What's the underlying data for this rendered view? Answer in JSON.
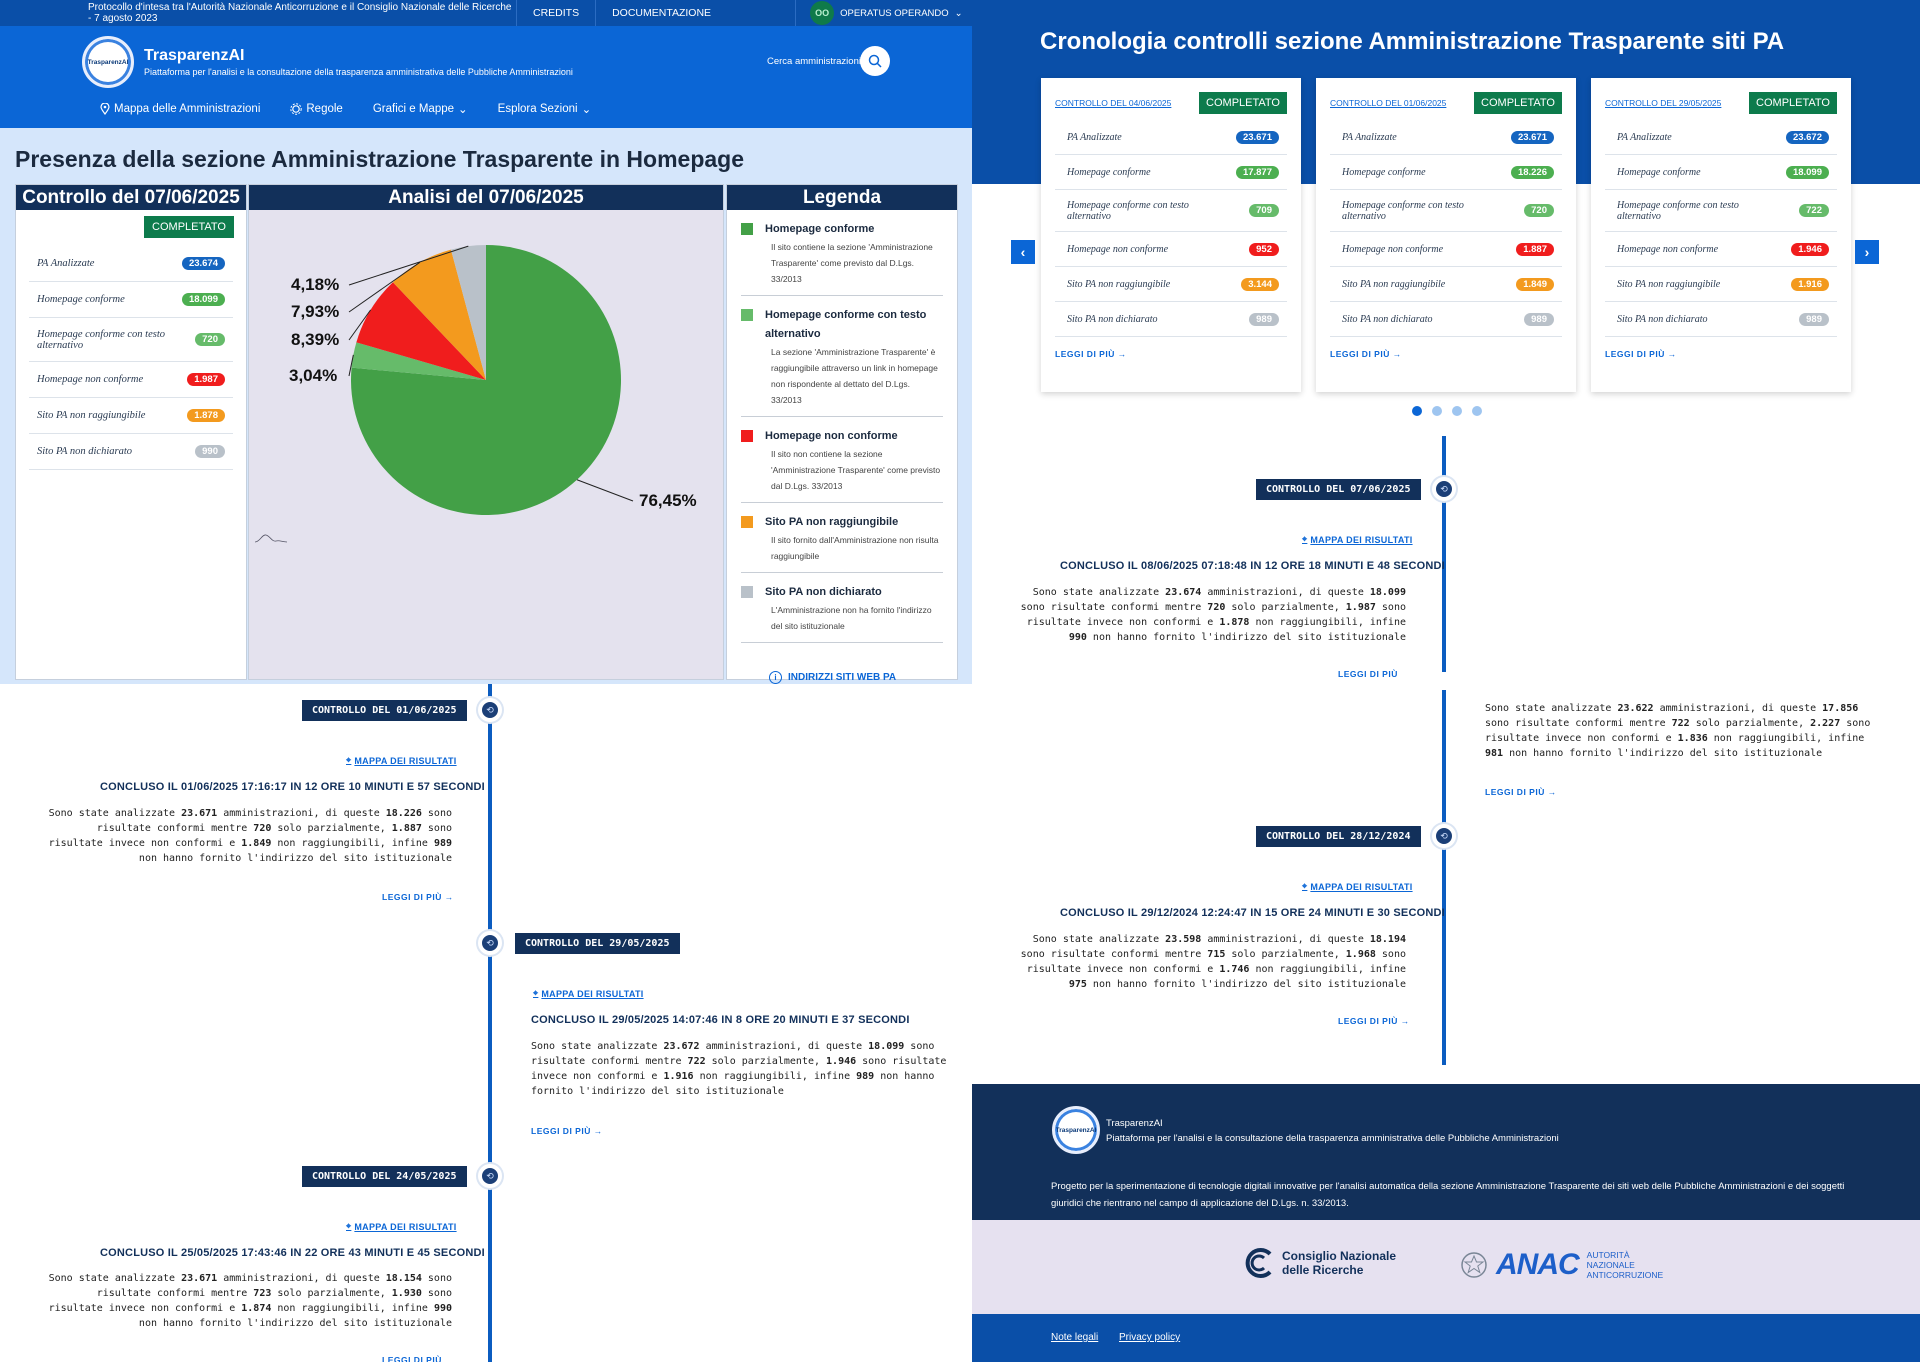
{
  "topbar": {
    "protocol": "Protocollo d'intesa tra l'Autorità Nazionale Anticorruzione e il Consiglio Nazionale delle Ricerche - 7 agosto 2023",
    "credits": "CREDITS",
    "docs": "DOCUMENTAZIONE",
    "status_code": "OO",
    "status_label": "OPERATUS OPERANDO"
  },
  "brand": {
    "logo_text": "TrasparenzAI",
    "name": "TrasparenzAI",
    "tagline": "Piattaforma per l'analisi e la consultazione della trasparenza amministrativa delle Pubbliche Amministrazioni"
  },
  "search": {
    "label": "Cerca amministrazioni"
  },
  "nav": {
    "map": "Mappa delle Amministrazioni",
    "rules": "Regole",
    "charts": "Grafici e Mappe",
    "explore": "Esplora Sezioni"
  },
  "homepage": {
    "title": "Presenza della sezione Amministrazione Trasparente in Homepage",
    "control_head": "Controllo del 07/06/2025",
    "analysis_head": "Analisi del 07/06/2025",
    "legend_head": "Legenda",
    "status": "COMPLETATO",
    "stats": [
      {
        "label": "PA Analizzate",
        "value": "23.674"
      },
      {
        "label": "Homepage conforme",
        "value": "18.099"
      },
      {
        "label": "Homepage conforme con testo alternativo",
        "value": "720"
      },
      {
        "label": "Homepage non conforme",
        "value": "1.987"
      },
      {
        "label": "Sito PA non raggiungibile",
        "value": "1.878"
      },
      {
        "label": "Sito PA non dichiarato",
        "value": "990"
      }
    ],
    "legend": [
      {
        "title": "Homepage conforme",
        "desc": "Il sito contiene la sezione 'Amministrazione Trasparente' come previsto dal D.Lgs. 33/2013",
        "color": "#43a047"
      },
      {
        "title": "Homepage conforme con testo alternativo",
        "desc": "La sezione 'Amministrazione Trasparente' è raggiungibile attraverso un link in homepage non rispondente al dettato del D.Lgs. 33/2013",
        "color": "#66bb6a"
      },
      {
        "title": "Homepage non conforme",
        "desc": "Il sito non contiene la sezione 'Amministrazione Trasparente' come previsto dal D.Lgs. 33/2013",
        "color": "#f01d1d"
      },
      {
        "title": "Sito PA non raggiungibile",
        "desc": "Il sito fornito dall'Amministrazione non risulta raggiungibile",
        "color": "#f39a1e"
      },
      {
        "title": "Sito PA non dichiarato",
        "desc": "L'Amministrazione non ha fornito l'indirizzo del sito istituzionale",
        "color": "#b9c1c9"
      }
    ],
    "addresses_link": "INDIRIZZI SITI WEB PA"
  },
  "chart_data": {
    "type": "pie",
    "labels": [
      "Homepage conforme",
      "Homepage conforme con testo alternativo",
      "Homepage non conforme",
      "Sito PA non raggiungibile",
      "Sito PA non dichiarato"
    ],
    "values": [
      76.45,
      3.04,
      8.39,
      7.93,
      4.18
    ],
    "value_labels": [
      "76,45%",
      "3,04%",
      "8,39%",
      "7,93%",
      "4,18%"
    ],
    "colors": [
      "#43a047",
      "#66bb6a",
      "#f01d1d",
      "#f39a1e",
      "#b9c1c9"
    ]
  },
  "cronologia": {
    "title": "Cronologia controlli sezione Amministrazione Trasparente siti PA",
    "read_more": "LEGGI DI PIÙ",
    "stat_labels": [
      "PA Analizzate",
      "Homepage conforme",
      "Homepage conforme con testo alternativo",
      "Homepage non conforme",
      "Sito PA non raggiungibile",
      "Sito PA non dichiarato"
    ],
    "cards": [
      {
        "link": "CONTROLLO DEL 04/06/2025",
        "status": "COMPLETATO",
        "values": [
          "23.671",
          "17.877",
          "709",
          "952",
          "3.144",
          "989"
        ]
      },
      {
        "link": "CONTROLLO DEL 01/06/2025",
        "status": "COMPLETATO",
        "values": [
          "23.671",
          "18.226",
          "720",
          "1.887",
          "1.849",
          "989"
        ]
      },
      {
        "link": "CONTROLLO DEL 29/05/2025",
        "status": "COMPLETATO",
        "values": [
          "23.672",
          "18.099",
          "722",
          "1.946",
          "1.916",
          "989"
        ]
      }
    ]
  },
  "timeline_right": {
    "tag1": "CONTROLLO DEL 07/06/2025",
    "map1": "MAPPA DEI RISULTATI",
    "concl1": "CONCLUSO IL 08/06/2025 07:18:48 IN 12 ORE 18 MINUTI E 48 SECONDI",
    "text1": [
      "Sono state analizzate ",
      "23.674",
      " amministrazioni, di queste ",
      "18.099",
      " sono risultate conformi mentre ",
      "720",
      " solo parzialmente, ",
      "1.987",
      " sono risultate invece non conformi e ",
      "1.878",
      " non raggiungibili, infine ",
      "990",
      " non hanno fornito l'indirizzo del sito istituzionale"
    ],
    "text2": [
      "Sono state analizzate ",
      "23.622",
      " amministrazioni, di queste ",
      "17.856",
      " sono risultate conformi mentre ",
      "722",
      " solo parzialmente, ",
      "2.227",
      " sono risultate invece non conformi e ",
      "1.836",
      " non raggiungibili, infine ",
      "981",
      " non hanno fornito l'indirizzo del sito istituzionale"
    ],
    "read_more": "LEGGI DI PIÙ",
    "tag3": "CONTROLLO DEL 28/12/2024",
    "map3": "MAPPA DEI RISULTATI",
    "concl3": "CONCLUSO IL 29/12/2024 12:24:47 IN 15 ORE 24 MINUTI E 30 SECONDI",
    "text3": [
      "Sono state analizzate ",
      "23.598",
      " amministrazioni, di queste ",
      "18.194",
      " sono risultate conformi mentre ",
      "715",
      " solo parzialmente, ",
      "1.968",
      " sono risultate invece non conformi e ",
      "1.746",
      " non raggiungibili, infine ",
      "975",
      " non hanno fornito l'indirizzo del sito istituzionale"
    ]
  },
  "timeline_left": {
    "tag1": "CONTROLLO DEL 01/06/2025",
    "map": "MAPPA DEI RISULTATI",
    "concl1": "CONCLUSO IL 01/06/2025 17:16:17 IN 12 ORE 10 MINUTI E 57 SECONDI",
    "text1": [
      "Sono state analizzate ",
      "23.671",
      " amministrazioni, di queste ",
      "18.226",
      " sono risultate conformi mentre ",
      "720",
      " solo parzialmente, ",
      "1.887",
      " sono risultate invece non conformi e ",
      "1.849",
      " non raggiungibili, infine ",
      "989",
      " non hanno fornito l'indirizzo del sito istituzionale"
    ],
    "read_more": "LEGGI DI PIÙ",
    "tag2": "CONTROLLO DEL 29/05/2025",
    "concl2": "CONCLUSO IL 29/05/2025 14:07:46 IN 8 ORE 20 MINUTI E 37 SECONDI",
    "text2": [
      "Sono state analizzate ",
      "23.672",
      " amministrazioni, di queste ",
      "18.099",
      " sono risultate conformi mentre ",
      "722",
      " solo parzialmente, ",
      "1.946",
      " sono risultate invece non conformi e ",
      "1.916",
      " non raggiungibili, infine ",
      "989",
      " non hanno fornito l'indirizzo del sito istituzionale"
    ],
    "tag3": "CONTROLLO DEL 24/05/2025",
    "concl3": "CONCLUSO IL 25/05/2025 17:43:46 IN 22 ORE 43 MINUTI E 45 SECONDI",
    "text3": [
      "Sono state analizzate ",
      "23.671",
      " amministrazioni, di queste ",
      "18.154",
      " sono risultate conformi mentre ",
      "723",
      " solo parzialmente, ",
      "1.930",
      " sono risultate invece non conformi e ",
      "1.874",
      " non raggiungibili, infine ",
      "990",
      " non hanno fornito l'indirizzo del sito istituzionale"
    ]
  },
  "footer": {
    "logo_text": "TrasparenzAI",
    "name": "TrasparenzAI",
    "tagline": "Piattaforma per l'analisi e la consultazione della trasparenza amministrativa delle Pubbliche Amministrazioni",
    "project": "Progetto per la sperimentazione di tecnologie digitali innovative per l'analisi automatica della sezione Amministrazione Trasparente dei siti web delle Pubbliche Amministrazioni e dei soggetti giuridici che rientrano nel campo di applicazione del D.Lgs. n. 33/2013.",
    "cnr_line1": "Consiglio Nazionale",
    "cnr_line2": "delle Ricerche",
    "anac_logo": "ANAC",
    "anac_line1": "AUTORITÀ",
    "anac_line2": "NAZIONALE",
    "anac_line3": "ANTICORRUZIONE",
    "legal": "Note legali",
    "privacy": "Privacy policy"
  }
}
